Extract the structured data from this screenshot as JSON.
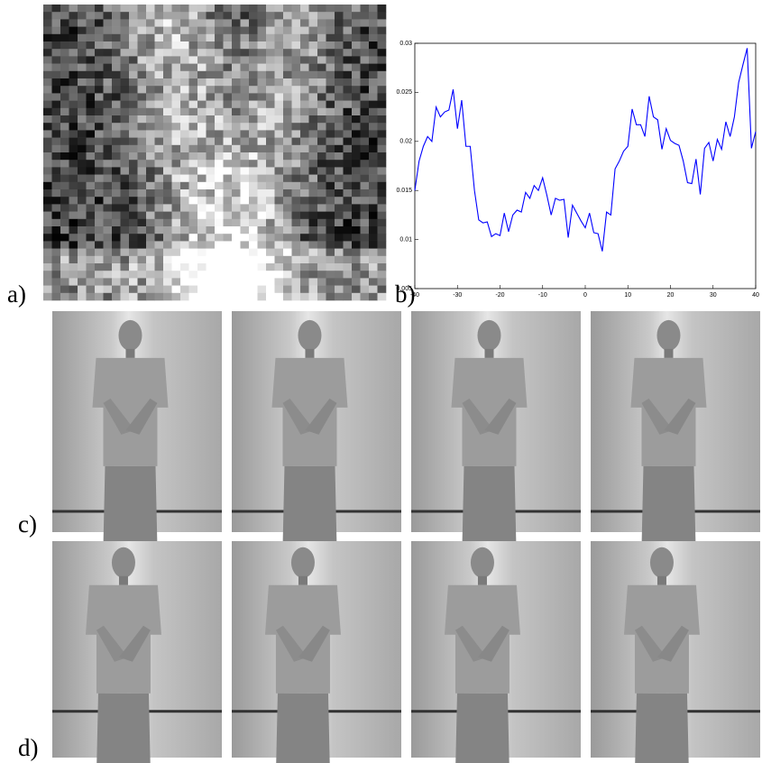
{
  "labels": [
    "a)",
    "b)",
    "c)",
    "d)"
  ],
  "chart_data": {
    "type": "line",
    "color": "#0000ff",
    "x": [
      -40,
      -39,
      -38,
      -37,
      -36,
      -35,
      -34,
      -33,
      -32,
      -31,
      -30,
      -29,
      -28,
      -27,
      -26,
      -25,
      -24,
      -23,
      -22,
      -21,
      -20,
      -19,
      -18,
      -17,
      -16,
      -15,
      -14,
      -13,
      -12,
      -11,
      -10,
      -9,
      -8,
      -7,
      -6,
      -5,
      -4,
      -3,
      -2,
      -1,
      0,
      1,
      2,
      3,
      4,
      5,
      6,
      7,
      8,
      9,
      10,
      11,
      12,
      13,
      14,
      15,
      16,
      17,
      18,
      19,
      20,
      21,
      22,
      23,
      24,
      25,
      26,
      27,
      28,
      29,
      30,
      31,
      32,
      33,
      34,
      35,
      36,
      37,
      38,
      39,
      40
    ],
    "values": [
      0.015,
      0.018,
      0.0195,
      0.0205,
      0.02,
      0.0235,
      0.0225,
      0.023,
      0.0232,
      0.0253,
      0.0213,
      0.0242,
      0.0195,
      0.0195,
      0.015,
      0.012,
      0.0117,
      0.0118,
      0.0103,
      0.0106,
      0.0104,
      0.0127,
      0.0108,
      0.0125,
      0.013,
      0.0128,
      0.0148,
      0.0142,
      0.0155,
      0.015,
      0.0163,
      0.0145,
      0.0125,
      0.0142,
      0.014,
      0.0141,
      0.0102,
      0.0135,
      0.0127,
      0.0119,
      0.0112,
      0.0127,
      0.0107,
      0.0106,
      0.0088,
      0.0128,
      0.0125,
      0.0172,
      0.018,
      0.019,
      0.0195,
      0.0233,
      0.0217,
      0.0217,
      0.0205,
      0.0246,
      0.0225,
      0.0222,
      0.0192,
      0.0213,
      0.0201,
      0.0198,
      0.0196,
      0.018,
      0.0158,
      0.0157,
      0.0182,
      0.0146,
      0.0193,
      0.0199,
      0.018,
      0.0202,
      0.0192,
      0.022,
      0.0205,
      0.0225,
      0.026,
      0.0278,
      0.0295,
      0.0193,
      0.021
    ],
    "xlim": [
      -40,
      40
    ],
    "xticks": [
      -40,
      -30,
      -20,
      -10,
      0,
      10,
      20,
      30,
      40
    ],
    "ylim": [
      0.005,
      0.03
    ],
    "yticks": [
      0.005,
      0.01,
      0.015,
      0.02,
      0.025,
      0.03
    ]
  }
}
